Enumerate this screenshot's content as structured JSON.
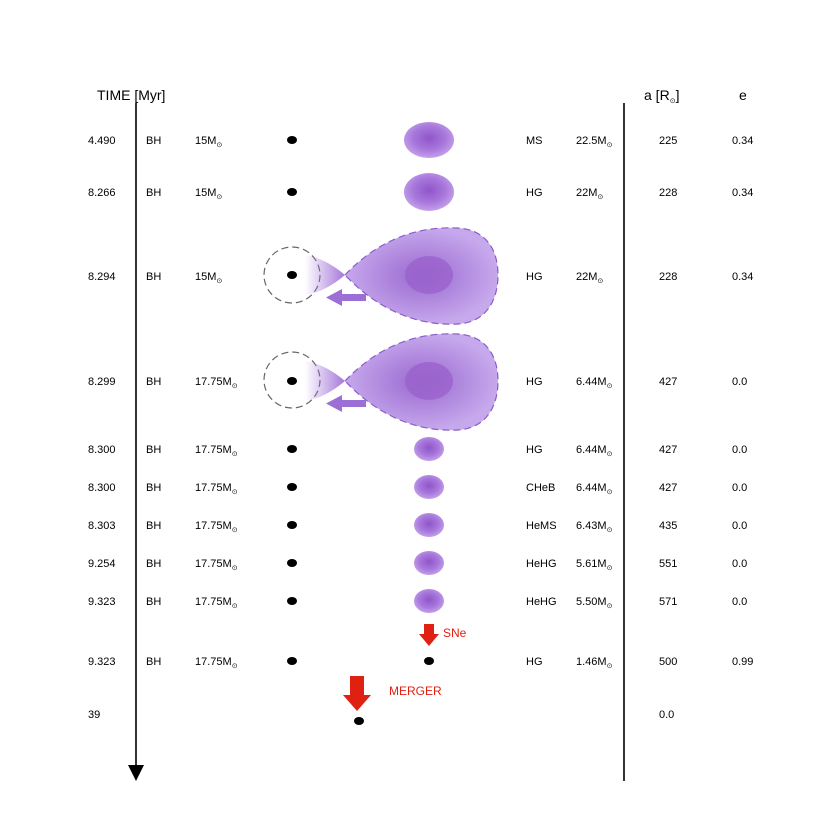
{
  "headers": {
    "time_label": "TIME [Myr]",
    "sep_label": "a [R",
    "sep_close": "]",
    "sun_symbol": "⊙",
    "ecc_label": "e"
  },
  "rows": [
    {
      "time": "4.490",
      "t1": "BH",
      "m1": "15M",
      "t2": "MS",
      "m2": "22.5M",
      "a": "225",
      "e": "0.34"
    },
    {
      "time": "8.266",
      "t1": "BH",
      "m1": "15M",
      "t2": "HG",
      "m2": "22M",
      "a": "228",
      "e": "0.34"
    },
    {
      "time": "8.294",
      "t1": "BH",
      "m1": "15M",
      "t2": "HG",
      "m2": "22M",
      "a": "228",
      "e": "0.34"
    },
    {
      "time": "8.299",
      "t1": "BH",
      "m1": "17.75M",
      "t2": "HG",
      "m2": "6.44M",
      "a": "427",
      "e": "0.0"
    },
    {
      "time": "8.300",
      "t1": "BH",
      "m1": "17.75M",
      "t2": "HG",
      "m2": "6.44M",
      "a": "427",
      "e": "0.0"
    },
    {
      "time": "8.300",
      "t1": "BH",
      "m1": "17.75M",
      "t2": "CHeB",
      "m2": "6.44M",
      "a": "427",
      "e": "0.0"
    },
    {
      "time": "8.303",
      "t1": "BH",
      "m1": "17.75M",
      "t2": "HeMS",
      "m2": "6.43M",
      "a": "435",
      "e": "0.0"
    },
    {
      "time": "9.254",
      "t1": "BH",
      "m1": "17.75M",
      "t2": "HeHG",
      "m2": "5.61M",
      "a": "551",
      "e": "0.0"
    },
    {
      "time": "9.323",
      "t1": "BH",
      "m1": "17.75M",
      "t2": "HeHG",
      "m2": "5.50M",
      "a": "571",
      "e": "0.0"
    },
    {
      "time": "9.323",
      "t1": "BH",
      "m1": "17.75M",
      "t2": "HG",
      "m2": "1.46M",
      "a": "500",
      "e": "0.99"
    }
  ],
  "final": {
    "time": "39",
    "a": "0.0"
  },
  "events": {
    "sne": "SNe",
    "merger": "MERGER"
  },
  "colors": {
    "star": "#a070d8",
    "star_core": "#9060c8",
    "event": "#e02010",
    "arrow_purple": "#9b6fd6"
  }
}
